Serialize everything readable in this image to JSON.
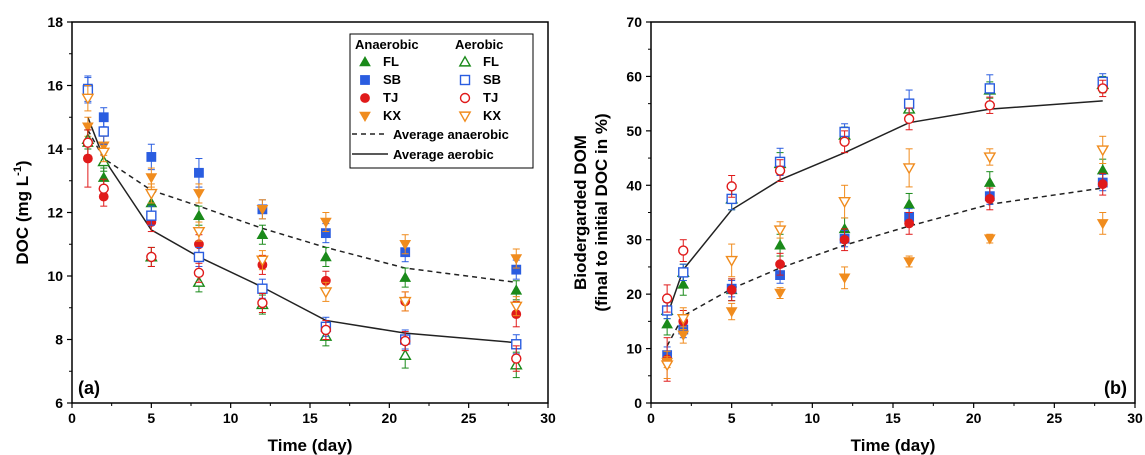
{
  "chart_data": [
    {
      "type": "scatter",
      "panel_label": "(a)",
      "xlabel": "Time (day)",
      "ylabel": "DOC (mg L",
      "ylabel_sup": "-1",
      "ylabel_end": ")",
      "xlim": [
        0,
        30
      ],
      "ylim": [
        6,
        18
      ],
      "xticks": [
        "0",
        "5",
        "10",
        "15",
        "20",
        "25",
        "30"
      ],
      "yticks": [
        "6",
        "8",
        "10",
        "12",
        "14",
        "16",
        "18"
      ],
      "legend": {
        "placement": "top-right",
        "group_anaerobic": "Anaerobic",
        "group_aerobic": "Aerobic",
        "line_anaerobic": "Average anaerobic",
        "line_aerobic": "Average aerobic"
      },
      "x": [
        1,
        2,
        5,
        8,
        12,
        16,
        21,
        28
      ],
      "series": [
        {
          "name": "FL",
          "condition": "anaerobic",
          "marker": "triangle",
          "filled": true,
          "color": "#1a8a1a",
          "values": [
            14.2,
            13.1,
            12.3,
            11.9,
            11.3,
            10.6,
            9.95,
            9.55
          ],
          "errors": [
            0.4,
            0.3,
            0.3,
            0.3,
            0.3,
            0.3,
            0.3,
            0.3
          ]
        },
        {
          "name": "SB",
          "condition": "anaerobic",
          "marker": "square",
          "filled": true,
          "color": "#2a5de0",
          "values": [
            15.9,
            15.0,
            13.75,
            13.25,
            12.1,
            11.35,
            10.75,
            10.2
          ],
          "errors": [
            0.4,
            0.3,
            0.4,
            0.45,
            0.3,
            0.3,
            0.3,
            0.3
          ]
        },
        {
          "name": "TJ",
          "condition": "anaerobic",
          "marker": "circle",
          "filled": true,
          "color": "#e01a1a",
          "values": [
            13.7,
            12.5,
            11.7,
            11.0,
            10.35,
            9.85,
            9.2,
            8.8
          ],
          "errors": [
            0.9,
            0.3,
            0.3,
            0.3,
            0.3,
            0.3,
            0.3,
            0.4
          ]
        },
        {
          "name": "KX",
          "condition": "anaerobic",
          "marker": "triangle-down",
          "filled": true,
          "color": "#f08c1e",
          "values": [
            14.7,
            14.1,
            13.1,
            12.6,
            12.1,
            11.7,
            11.0,
            10.55
          ],
          "errors": [
            0.3,
            0.3,
            0.3,
            0.3,
            0.3,
            0.3,
            0.3,
            0.3
          ]
        },
        {
          "name": "FL",
          "condition": "aerobic",
          "marker": "triangle",
          "filled": false,
          "color": "#1a8a1a",
          "values": [
            14.3,
            13.6,
            10.6,
            9.8,
            9.1,
            8.1,
            7.5,
            7.2
          ],
          "errors": [
            0.3,
            0.3,
            0.3,
            0.3,
            0.3,
            0.3,
            0.4,
            0.4
          ]
        },
        {
          "name": "SB",
          "condition": "aerobic",
          "marker": "square",
          "filled": false,
          "color": "#2a5de0",
          "values": [
            15.85,
            14.55,
            11.9,
            10.6,
            9.6,
            8.4,
            8.0,
            7.85
          ],
          "errors": [
            0.4,
            0.4,
            0.3,
            0.3,
            0.3,
            0.3,
            0.3,
            0.3
          ]
        },
        {
          "name": "TJ",
          "condition": "aerobic",
          "marker": "circle",
          "filled": false,
          "color": "#e01a1a",
          "values": [
            14.2,
            12.75,
            10.6,
            10.1,
            9.15,
            8.3,
            7.95,
            7.4
          ],
          "errors": [
            0.4,
            0.3,
            0.3,
            0.3,
            0.3,
            0.3,
            0.3,
            0.4
          ]
        },
        {
          "name": "KX",
          "condition": "aerobic",
          "marker": "triangle-down",
          "filled": false,
          "color": "#f08c1e",
          "values": [
            15.6,
            13.9,
            12.6,
            11.4,
            10.5,
            9.5,
            9.2,
            9.05
          ],
          "errors": [
            0.4,
            0.3,
            0.3,
            0.3,
            0.3,
            0.3,
            0.3,
            0.3
          ]
        }
      ],
      "average_lines": [
        {
          "condition": "anaerobic",
          "style": "dashed",
          "x": [
            1,
            2,
            5,
            8,
            12,
            16,
            21,
            28
          ],
          "values": [
            14.6,
            13.7,
            12.7,
            12.2,
            11.5,
            10.9,
            10.25,
            9.8
          ]
        },
        {
          "condition": "aerobic",
          "style": "solid",
          "x": [
            1,
            2,
            5,
            8,
            12,
            16,
            21,
            28
          ],
          "values": [
            15.0,
            13.7,
            11.45,
            10.6,
            9.65,
            8.6,
            8.2,
            7.9
          ]
        }
      ]
    },
    {
      "type": "scatter",
      "panel_label": "(b)",
      "xlabel": "Time (day)",
      "ylabel": "Biodergarded DOM",
      "ylabel_line2": "(final to initial DOC in %)",
      "xlim": [
        0,
        30
      ],
      "ylim": [
        0,
        70
      ],
      "xticks": [
        "0",
        "5",
        "10",
        "15",
        "20",
        "25",
        "30"
      ],
      "yticks": [
        "0",
        "10",
        "20",
        "30",
        "40",
        "50",
        "60",
        "70"
      ],
      "x": [
        1,
        2,
        5,
        8,
        12,
        16,
        21,
        28
      ],
      "series": [
        {
          "name": "FL",
          "condition": "anaerobic",
          "marker": "triangle",
          "filled": true,
          "color": "#1a8a1a",
          "values": [
            14.5,
            21.8,
            20.8,
            29.0,
            32.0,
            36.5,
            40.5,
            42.8
          ],
          "errors": [
            2.0,
            2.0,
            2.0,
            2.0,
            2.0,
            2.0,
            2.0,
            2.0
          ]
        },
        {
          "name": "SB",
          "condition": "anaerobic",
          "marker": "square",
          "filled": true,
          "color": "#2a5de0",
          "values": [
            8.8,
            13.5,
            21.0,
            23.5,
            30.2,
            34.2,
            38.0,
            40.5
          ],
          "errors": [
            1.5,
            1.5,
            1.5,
            1.5,
            1.5,
            1.5,
            1.5,
            1.5
          ]
        },
        {
          "name": "TJ",
          "condition": "anaerobic",
          "marker": "circle",
          "filled": true,
          "color": "#e01a1a",
          "values": [
            8.0,
            15.0,
            20.8,
            25.5,
            30.0,
            33.0,
            37.5,
            40.2
          ],
          "errors": [
            4.0,
            2.0,
            2.0,
            2.0,
            2.0,
            2.0,
            2.0,
            2.0
          ]
        },
        {
          "name": "KX",
          "condition": "anaerobic",
          "marker": "triangle-down",
          "filled": true,
          "color": "#f08c1e",
          "values": [
            7.5,
            12.5,
            16.8,
            20.2,
            23.0,
            26.0,
            30.2,
            33.0
          ],
          "errors": [
            1.0,
            1.5,
            1.5,
            1.0,
            2.0,
            1.0,
            0.8,
            2.0
          ]
        },
        {
          "name": "FL",
          "condition": "aerobic",
          "marker": "triangle",
          "filled": false,
          "color": "#1a8a1a",
          "values": [
            17.0,
            24.0,
            37.5,
            44.0,
            49.2,
            54.0,
            57.5,
            58.5
          ],
          "errors": [
            1.5,
            1.5,
            2.0,
            2.0,
            1.5,
            1.5,
            1.5,
            1.5
          ]
        },
        {
          "name": "SB",
          "condition": "aerobic",
          "marker": "square",
          "filled": false,
          "color": "#2a5de0",
          "values": [
            17.0,
            24.0,
            37.5,
            44.3,
            49.8,
            55.0,
            57.8,
            59.0
          ],
          "errors": [
            1.5,
            1.5,
            2.0,
            2.5,
            1.5,
            2.5,
            2.5,
            1.5
          ]
        },
        {
          "name": "TJ",
          "condition": "aerobic",
          "marker": "circle",
          "filled": false,
          "color": "#e01a1a",
          "values": [
            19.2,
            28.0,
            39.8,
            42.7,
            48.0,
            52.2,
            54.7,
            57.8
          ],
          "errors": [
            2.5,
            2.0,
            2.0,
            2.0,
            2.0,
            2.0,
            1.5,
            1.5
          ]
        },
        {
          "name": "KX",
          "condition": "aerobic",
          "marker": "triangle-down",
          "filled": false,
          "color": "#f08c1e",
          "values": [
            7.0,
            15.5,
            26.2,
            31.8,
            37.0,
            43.2,
            45.2,
            46.5
          ],
          "errors": [
            2.5,
            2.0,
            3.0,
            1.5,
            3.0,
            3.5,
            1.5,
            2.5
          ]
        }
      ],
      "average_lines": [
        {
          "condition": "anaerobic",
          "style": "dashed",
          "x": [
            1,
            2,
            5,
            8,
            12,
            16,
            21,
            28
          ],
          "values": [
            10.5,
            16.0,
            21.0,
            24.8,
            29.0,
            32.5,
            36.5,
            39.5
          ]
        },
        {
          "condition": "aerobic",
          "style": "solid",
          "x": [
            1,
            2,
            5,
            8,
            12,
            16,
            21,
            28
          ],
          "values": [
            16.0,
            24.5,
            35.5,
            41.0,
            46.0,
            51.5,
            54.0,
            55.5
          ]
        }
      ]
    }
  ]
}
